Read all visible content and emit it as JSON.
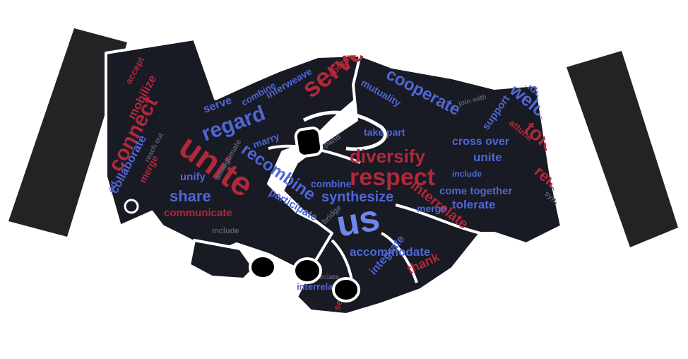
{
  "colors": {
    "background": "#ffffff",
    "cuff": "#232325",
    "hand_fill": "#181a24",
    "outline": "#ffffff",
    "red_words": "#b0283a",
    "blue_words": "#4f66d6",
    "light_blue_words": "#6f86e8",
    "dim_words": "#5a6070"
  },
  "icons": [
    "handshake-illustration",
    "left-sleeve-cuff",
    "right-sleeve-cuff",
    "cufflink-button"
  ],
  "words": {
    "connect": "connect",
    "mobilize": "mobilize",
    "accept": "accept",
    "collaborate": "collaborate",
    "merge": "merge",
    "blend": "blend",
    "unite": "unite",
    "regard": "regard",
    "serve": "serve",
    "combine": "combine",
    "interweave": "interweave",
    "recombine": "recombine",
    "marry": "marry",
    "unify": "unify",
    "share": "share",
    "communicate": "communicate",
    "participate": "participate",
    "include": "include",
    "us": "us",
    "mutuality": "mutuality",
    "cooperate": "cooperate",
    "diversify": "diversify",
    "respect": "respect",
    "synthesize": "synthesize",
    "take_part": "take part",
    "cross_over": "cross over",
    "come_together": "come together",
    "tolerate": "tolerate",
    "interrelate": "interrelate",
    "accommodate": "accommodate",
    "thank": "thank",
    "integrate": "integrate",
    "support": "support",
    "welcome": "welcome",
    "understand": "understand",
    "enlist": "enlist",
    "relate_to": "relate to",
    "synthesize_small": "synthesize",
    "contribute": "contribute",
    "amalgamate": "amalgamate",
    "bridge": "bridge",
    "expand": "expand",
    "reach_out": "reach out",
    "appreciate": "appreciate",
    "join_with": "join with",
    "attune": "attune"
  }
}
